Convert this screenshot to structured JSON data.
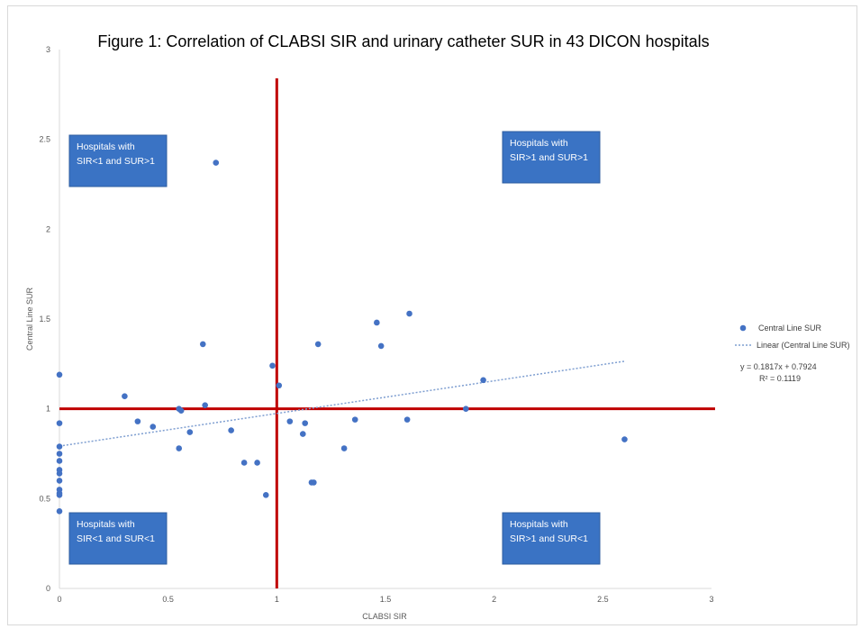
{
  "chart_data": {
    "type": "scatter",
    "title": "Figure 1: Correlation of CLABSI SIR and urinary catheter SUR in 43 DICON hospitals",
    "xlabel": "CLABSI SIR",
    "ylabel": "Central Line SUR",
    "xlim": [
      0,
      3
    ],
    "ylim": [
      0,
      3
    ],
    "x_ticks": [
      "0",
      "0.5",
      "1",
      "1.5",
      "2",
      "2.5",
      "3"
    ],
    "y_ticks": [
      "0",
      "0.5",
      "1",
      "1.5",
      "2",
      "2.5",
      "3"
    ],
    "grid": false,
    "legend_position": "right",
    "series": [
      {
        "name": "Central Line SUR",
        "color": "#4472c4",
        "points": [
          [
            0,
            1.19
          ],
          [
            0,
            0.92
          ],
          [
            0,
            0.79
          ],
          [
            0,
            0.75
          ],
          [
            0,
            0.71
          ],
          [
            0,
            0.66
          ],
          [
            0,
            0.64
          ],
          [
            0,
            0.6
          ],
          [
            0,
            0.55
          ],
          [
            0,
            0.53
          ],
          [
            0,
            0.52
          ],
          [
            0,
            0.43
          ],
          [
            0.3,
            1.07
          ],
          [
            0.36,
            0.93
          ],
          [
            0.43,
            0.9
          ],
          [
            0.55,
            1.0
          ],
          [
            0.56,
            0.99
          ],
          [
            0.55,
            0.78
          ],
          [
            0.6,
            0.87
          ],
          [
            0.66,
            1.36
          ],
          [
            0.67,
            1.02
          ],
          [
            0.72,
            2.37
          ],
          [
            0.79,
            0.88
          ],
          [
            0.85,
            0.7
          ],
          [
            0.91,
            0.7
          ],
          [
            0.95,
            0.52
          ],
          [
            0.98,
            1.24
          ],
          [
            1.01,
            1.13
          ],
          [
            1.06,
            0.93
          ],
          [
            1.12,
            0.86
          ],
          [
            1.13,
            0.92
          ],
          [
            1.16,
            0.59
          ],
          [
            1.17,
            0.59
          ],
          [
            1.19,
            1.36
          ],
          [
            1.31,
            0.78
          ],
          [
            1.36,
            0.94
          ],
          [
            1.46,
            1.48
          ],
          [
            1.48,
            1.35
          ],
          [
            1.6,
            0.94
          ],
          [
            1.61,
            1.53
          ],
          [
            1.87,
            1.0
          ],
          [
            1.95,
            1.16
          ],
          [
            2.6,
            0.83
          ]
        ]
      }
    ],
    "trendline": {
      "name": "Linear (Central Line SUR)",
      "slope": 0.1817,
      "intercept": 0.7924,
      "x_range": [
        0,
        2.6
      ],
      "color": "#7f9fd1",
      "equation": "y = 0.1817x + 0.7924",
      "r2": "R² = 0.1119"
    },
    "reference_lines": {
      "x": 1,
      "y": 1,
      "y_extent": 2.84,
      "color": "#c00000"
    },
    "quadrant_labels": [
      {
        "id": "tl",
        "line1": "Hospitals with",
        "line2": "SIR<1 and SUR>1"
      },
      {
        "id": "tr",
        "line1": "Hospitals with",
        "line2": "SIR>1 and SUR>1"
      },
      {
        "id": "bl",
        "line1": "Hospitals with",
        "line2": "SIR<1 and SUR<1"
      },
      {
        "id": "br",
        "line1": "Hospitals with",
        "line2": "SIR>1 and SUR<1"
      }
    ]
  }
}
